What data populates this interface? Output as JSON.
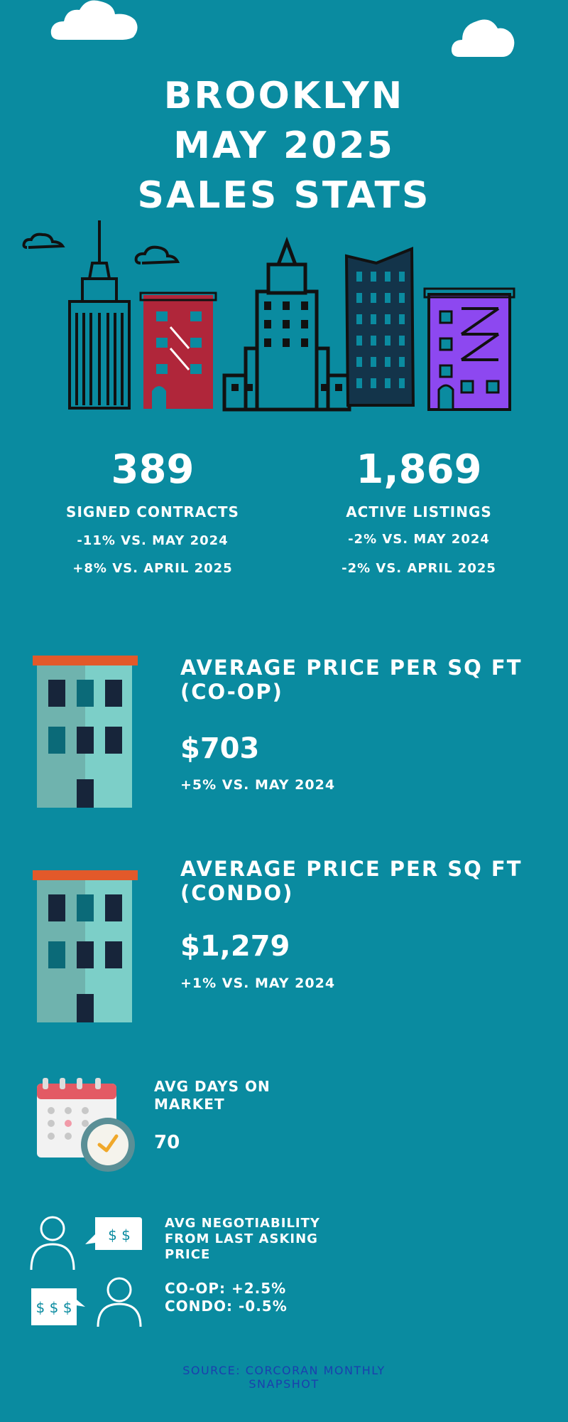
{
  "header": {
    "line1": "BROOKLYN",
    "line2": "MAY 2025",
    "line3": "SALES STATS"
  },
  "stats": {
    "contracts": {
      "value": "389",
      "label": "SIGNED CONTRACTS",
      "yoy": "-11% VS. MAY 2024",
      "mom": "+8% VS. APRIL 2025"
    },
    "listings": {
      "value": "1,869",
      "label": "ACTIVE LISTINGS",
      "yoy": "-2% VS. MAY 2024",
      "mom": "-2% VS. APRIL 2025"
    }
  },
  "coop": {
    "title_line1": "AVERAGE PRICE PER SQ FT",
    "title_line2": "(CO-OP)",
    "value": "$703",
    "change": "+5% VS. MAY 2024"
  },
  "condo": {
    "title_line1": "AVERAGE PRICE PER SQ FT",
    "title_line2": "(CONDO)",
    "value": "$1,279",
    "change": "+1% VS. MAY 2024"
  },
  "days": {
    "label_line1": "AVG DAYS ON",
    "label_line2": "MARKET",
    "value": "70"
  },
  "negotiability": {
    "label_line1": "AVG NEGOTIABILITY",
    "label_line2": "FROM LAST ASKING",
    "label_line3": "PRICE",
    "coop": "CO-OP: +2.5%",
    "condo": "CONDO: -0.5%",
    "bubble1": "$ $",
    "bubble2": "$ $ $"
  },
  "source": {
    "line1": "SOURCE: CORCORAN MONTHLY",
    "line2": "SNAPSHOT"
  },
  "icons": [
    "cloud-icon",
    "skyline-illustration",
    "building-icon",
    "calendar-clock-icon",
    "negotiation-icon"
  ],
  "colors": {
    "background": "#0a8ba0",
    "source_text": "#1b3fae",
    "red_building": "#b0263a",
    "purple_building": "#8d48f0",
    "roof": "#e2592a"
  }
}
